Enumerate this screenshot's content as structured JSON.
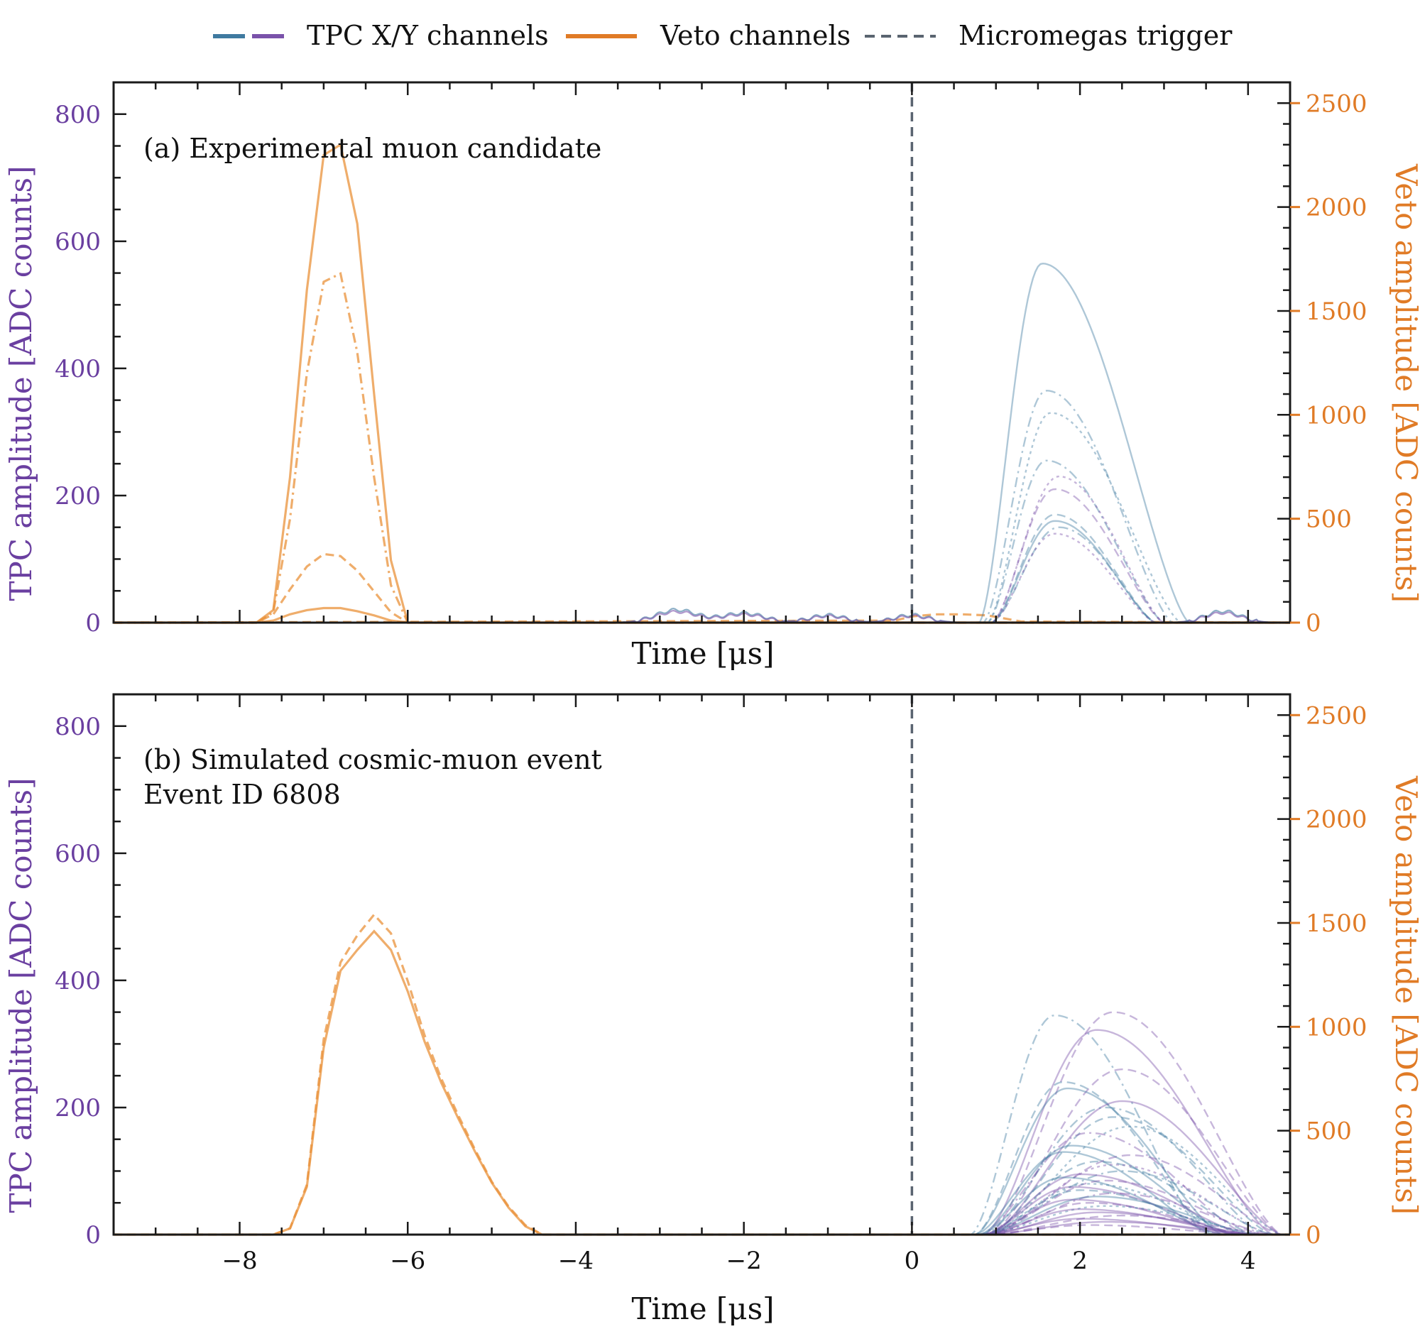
{
  "legend": {
    "items": [
      {
        "label": "TPC X/Y channels",
        "colors": [
          "#3f7aa0",
          "#7a52aa"
        ],
        "style": "solid"
      },
      {
        "label": "Veto channels",
        "colors": [
          "#e07b26"
        ],
        "style": "solid"
      },
      {
        "label": "Micromegas trigger",
        "colors": [
          "#5a6470"
        ],
        "style": "dashed"
      }
    ]
  },
  "colors": {
    "tpc_x": "#3f7aa0",
    "tpc_y": "#7a52aa",
    "veto": "#e9913a",
    "trigger": "#5a6470",
    "left_axis": "#6a3fa0",
    "right_axis": "#e07b26",
    "frame": "#1a1a1a"
  },
  "chart_data": [
    {
      "type": "line",
      "panel_label": "(a) Experimental muon candidate",
      "panel_label_line2": "",
      "xlabel": "Time [μs]",
      "ylabel_left": "TPC amplitude [ADC counts]",
      "ylabel_right": "Veto amplitude [ADC counts]",
      "xlim": [
        -9.5,
        4.5
      ],
      "ylim_left": [
        0,
        850
      ],
      "ylim_right": [
        0,
        2600
      ],
      "x_ticks": [
        -8,
        -6,
        -4,
        -2,
        0,
        2,
        4
      ],
      "x_tick_labels": [
        "−8",
        "−6",
        "−4",
        "−2",
        "0",
        "2",
        "4"
      ],
      "x_tick_labels_shown": false,
      "y_ticks_left": [
        0,
        200,
        400,
        600,
        800
      ],
      "y_ticks_right": [
        0,
        500,
        1000,
        1500,
        2000,
        2500
      ],
      "trigger_time": 0,
      "veto_series": [
        {
          "style": "solid",
          "x": [
            -9.5,
            -7.8,
            -7.6,
            -7.4,
            -7.2,
            -7.0,
            -6.8,
            -6.6,
            -6.4,
            -6.2,
            -6.0,
            4.5
          ],
          "y": [
            0,
            0,
            60,
            700,
            1600,
            2250,
            2300,
            1920,
            1100,
            300,
            0,
            0
          ]
        },
        {
          "style": "dashdot",
          "x": [
            -9.5,
            -7.8,
            -7.6,
            -7.4,
            -7.2,
            -7.0,
            -6.8,
            -6.6,
            -6.4,
            -6.2,
            -6.0,
            4.5
          ],
          "y": [
            0,
            0,
            50,
            500,
            1200,
            1640,
            1680,
            1300,
            700,
            180,
            0,
            0
          ]
        },
        {
          "style": "dashed",
          "x": [
            -9.5,
            -7.8,
            -7.6,
            -7.4,
            -7.2,
            -7.0,
            -6.8,
            -6.6,
            -6.4,
            -6.2,
            -6.0,
            4.5
          ],
          "y": [
            0,
            0,
            40,
            160,
            270,
            330,
            320,
            250,
            150,
            50,
            0,
            0
          ]
        },
        {
          "style": "solid",
          "x": [
            -9.5,
            -7.8,
            -7.6,
            -7.4,
            -7.2,
            -7.0,
            -6.8,
            -6.6,
            -6.4,
            -6.2,
            -6.0,
            4.5
          ],
          "y": [
            0,
            0,
            10,
            40,
            60,
            70,
            70,
            55,
            35,
            10,
            0,
            0
          ]
        },
        {
          "style": "dashed",
          "x": [
            -9.5,
            -0.2,
            0.0,
            0.3,
            0.6,
            0.9,
            1.1,
            1.3,
            4.5
          ],
          "y": [
            0,
            10,
            30,
            40,
            40,
            35,
            20,
            5,
            0
          ]
        }
      ],
      "tpc_series": [
        {
          "channel": "X",
          "style": "solid",
          "peak": 565,
          "t0": 0.8,
          "tpeak": 1.55,
          "tend": 3.3
        },
        {
          "channel": "X",
          "style": "dashdot",
          "peak": 365,
          "t0": 0.85,
          "tpeak": 1.6,
          "tend": 3.1
        },
        {
          "channel": "X",
          "style": "dotted",
          "peak": 330,
          "t0": 0.9,
          "tpeak": 1.65,
          "tend": 3.2
        },
        {
          "channel": "X",
          "style": "dashdot",
          "peak": 255,
          "t0": 0.9,
          "tpeak": 1.6,
          "tend": 3.0
        },
        {
          "channel": "Y",
          "style": "dotted",
          "peak": 230,
          "t0": 0.95,
          "tpeak": 1.75,
          "tend": 3.0
        },
        {
          "channel": "Y",
          "style": "dashed",
          "peak": 210,
          "t0": 0.95,
          "tpeak": 1.7,
          "tend": 3.0
        },
        {
          "channel": "X",
          "style": "dashed",
          "peak": 170,
          "t0": 0.95,
          "tpeak": 1.7,
          "tend": 2.9
        },
        {
          "channel": "X",
          "style": "solid",
          "peak": 160,
          "t0": 0.95,
          "tpeak": 1.7,
          "tend": 2.9
        },
        {
          "channel": "X",
          "style": "dashdot",
          "peak": 150,
          "t0": 0.95,
          "tpeak": 1.75,
          "tend": 2.9
        },
        {
          "channel": "Y",
          "style": "dotted",
          "peak": 140,
          "t0": 0.95,
          "tpeak": 1.7,
          "tend": 2.9
        }
      ],
      "tpc_noise_bumps": [
        {
          "center": -2.8,
          "height": 20,
          "width": 0.35
        },
        {
          "center": -2.0,
          "height": 15,
          "width": 0.35
        },
        {
          "center": -1.0,
          "height": 12,
          "width": 0.3
        },
        {
          "center": 0.0,
          "height": 12,
          "width": 0.3
        },
        {
          "center": 3.7,
          "height": 18,
          "width": 0.3
        }
      ]
    },
    {
      "type": "line",
      "panel_label": "(b) Simulated cosmic-muon event",
      "panel_label_line2": "Event ID 6808",
      "xlabel": "Time [μs]",
      "ylabel_left": "TPC amplitude [ADC counts]",
      "ylabel_right": "Veto amplitude [ADC counts]",
      "xlim": [
        -9.5,
        4.5
      ],
      "ylim_left": [
        0,
        850
      ],
      "ylim_right": [
        0,
        2600
      ],
      "x_ticks": [
        -8,
        -6,
        -4,
        -2,
        0,
        2,
        4
      ],
      "x_tick_labels": [
        "−8",
        "−6",
        "−4",
        "−2",
        "0",
        "2",
        "4"
      ],
      "x_tick_labels_shown": true,
      "y_ticks_left": [
        0,
        200,
        400,
        600,
        800
      ],
      "y_ticks_right": [
        0,
        500,
        1000,
        1500,
        2000,
        2500
      ],
      "trigger_time": 0,
      "veto_series": [
        {
          "style": "solid",
          "x": [
            -9.5,
            -7.6,
            -7.4,
            -7.2,
            -7.0,
            -6.8,
            -6.6,
            -6.4,
            -6.2,
            -6.0,
            -5.8,
            -5.6,
            -5.4,
            -5.2,
            -5.0,
            -4.8,
            -4.6,
            -4.4,
            4.5
          ],
          "y": [
            0,
            0,
            30,
            230,
            900,
            1270,
            1370,
            1460,
            1370,
            1170,
            930,
            730,
            560,
            400,
            250,
            130,
            40,
            0,
            0
          ]
        },
        {
          "style": "dashed",
          "x": [
            -9.5,
            -7.6,
            -7.4,
            -7.2,
            -7.0,
            -6.8,
            -6.6,
            -6.4,
            -6.2,
            -6.0,
            -5.8,
            -5.6,
            -5.4,
            -5.2,
            -5.0,
            -4.8,
            -4.6,
            -4.4,
            4.5
          ],
          "y": [
            0,
            0,
            30,
            240,
            940,
            1310,
            1440,
            1540,
            1450,
            1220,
            960,
            750,
            575,
            410,
            255,
            135,
            45,
            0,
            0
          ]
        }
      ],
      "tpc_series": [
        {
          "channel": "X",
          "style": "dashdot",
          "peak": 345,
          "t0": 0.7,
          "tpeak": 1.7,
          "tend": 3.5
        },
        {
          "channel": "Y",
          "style": "dashed",
          "peak": 350,
          "t0": 0.9,
          "tpeak": 2.4,
          "tend": 4.4
        },
        {
          "channel": "Y",
          "style": "solid",
          "peak": 322,
          "t0": 0.85,
          "tpeak": 2.2,
          "tend": 4.3
        },
        {
          "channel": "Y",
          "style": "dashed",
          "peak": 260,
          "t0": 0.9,
          "tpeak": 2.5,
          "tend": 4.4
        },
        {
          "channel": "X",
          "style": "dashed",
          "peak": 240,
          "t0": 0.75,
          "tpeak": 1.8,
          "tend": 3.6
        },
        {
          "channel": "X",
          "style": "solid",
          "peak": 230,
          "t0": 0.75,
          "tpeak": 1.85,
          "tend": 3.7
        },
        {
          "channel": "Y",
          "style": "solid",
          "peak": 210,
          "t0": 0.9,
          "tpeak": 2.5,
          "tend": 4.4
        },
        {
          "channel": "X",
          "style": "dashdot",
          "peak": 200,
          "t0": 0.85,
          "tpeak": 2.3,
          "tend": 4.2
        },
        {
          "channel": "X",
          "style": "dashed",
          "peak": 185,
          "t0": 0.9,
          "tpeak": 2.4,
          "tend": 4.3
        },
        {
          "channel": "X",
          "style": "dotted",
          "peak": 170,
          "t0": 0.9,
          "tpeak": 2.6,
          "tend": 4.4
        },
        {
          "channel": "Y",
          "style": "dashdot",
          "peak": 160,
          "t0": 0.8,
          "tpeak": 2.1,
          "tend": 4.0
        },
        {
          "channel": "X",
          "style": "solid",
          "peak": 140,
          "t0": 0.8,
          "tpeak": 1.9,
          "tend": 3.8
        },
        {
          "channel": "X",
          "style": "solid",
          "peak": 130,
          "t0": 0.75,
          "tpeak": 1.8,
          "tend": 3.6
        },
        {
          "channel": "Y",
          "style": "dashed",
          "peak": 125,
          "t0": 0.9,
          "tpeak": 2.6,
          "tend": 4.4
        },
        {
          "channel": "X",
          "style": "dashed",
          "peak": 115,
          "t0": 0.85,
          "tpeak": 2.2,
          "tend": 4.1
        },
        {
          "channel": "Y",
          "style": "dotted",
          "peak": 110,
          "t0": 0.9,
          "tpeak": 2.4,
          "tend": 4.3
        },
        {
          "channel": "X",
          "style": "dashdot",
          "peak": 100,
          "t0": 0.85,
          "tpeak": 2.5,
          "tend": 4.3
        },
        {
          "channel": "Y",
          "style": "solid",
          "peak": 95,
          "t0": 0.85,
          "tpeak": 2.0,
          "tend": 4.0
        },
        {
          "channel": "X",
          "style": "solid",
          "peak": 90,
          "t0": 0.8,
          "tpeak": 1.8,
          "tend": 3.7
        },
        {
          "channel": "Y",
          "style": "dashed",
          "peak": 85,
          "t0": 0.9,
          "tpeak": 2.3,
          "tend": 4.2
        },
        {
          "channel": "X",
          "style": "dotted",
          "peak": 80,
          "t0": 0.85,
          "tpeak": 2.1,
          "tend": 4.0
        },
        {
          "channel": "Y",
          "style": "solid",
          "peak": 75,
          "t0": 0.85,
          "tpeak": 1.9,
          "tend": 3.9
        },
        {
          "channel": "X",
          "style": "dashed",
          "peak": 70,
          "t0": 0.85,
          "tpeak": 2.0,
          "tend": 3.9
        },
        {
          "channel": "Y",
          "style": "dashdot",
          "peak": 65,
          "t0": 0.9,
          "tpeak": 2.4,
          "tend": 4.3
        },
        {
          "channel": "X",
          "style": "solid",
          "peak": 60,
          "t0": 0.85,
          "tpeak": 2.2,
          "tend": 4.1
        },
        {
          "channel": "Y",
          "style": "solid",
          "peak": 55,
          "t0": 0.85,
          "tpeak": 1.9,
          "tend": 3.9
        },
        {
          "channel": "Y",
          "style": "dashed",
          "peak": 50,
          "t0": 0.9,
          "tpeak": 2.1,
          "tend": 4.0
        },
        {
          "channel": "X",
          "style": "dotted",
          "peak": 45,
          "t0": 0.85,
          "tpeak": 2.3,
          "tend": 4.2
        },
        {
          "channel": "Y",
          "style": "solid",
          "peak": 40,
          "t0": 0.85,
          "tpeak": 2.0,
          "tend": 4.0
        },
        {
          "channel": "Y",
          "style": "solid",
          "peak": 35,
          "t0": 0.9,
          "tpeak": 2.2,
          "tend": 4.1
        },
        {
          "channel": "Y",
          "style": "dashed",
          "peak": 30,
          "t0": 0.9,
          "tpeak": 2.5,
          "tend": 4.3
        },
        {
          "channel": "Y",
          "style": "solid",
          "peak": 25,
          "t0": 0.85,
          "tpeak": 2.0,
          "tend": 4.0
        },
        {
          "channel": "Y",
          "style": "solid",
          "peak": 20,
          "t0": 0.9,
          "tpeak": 2.3,
          "tend": 4.2
        },
        {
          "channel": "Y",
          "style": "dashed",
          "peak": 15,
          "t0": 0.9,
          "tpeak": 2.1,
          "tend": 4.0
        }
      ],
      "tpc_noise_bumps": []
    }
  ]
}
